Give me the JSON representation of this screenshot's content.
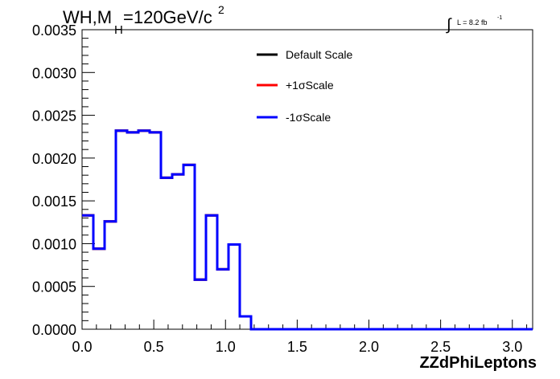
{
  "chart_data": {
    "type": "line",
    "title_main": "WH,M",
    "title_sub": "H",
    "title_rest": "=120GeV/c",
    "title_sup": "2",
    "lumi_int": "∫",
    "lumi_text": "L = 8.2 fb",
    "lumi_sup": "-1",
    "xlabel": "ZZdPhiLeptons",
    "xlim": [
      0,
      3.1416
    ],
    "ylim": [
      0,
      0.0035
    ],
    "xticks": [
      "0.0",
      "0.5",
      "1.0",
      "1.5",
      "2.0",
      "2.5",
      "3.0"
    ],
    "xtick_values": [
      0,
      0.5,
      1.0,
      1.5,
      2.0,
      2.5,
      3.0
    ],
    "yticks": [
      "0.0000",
      "0.0005",
      "0.0010",
      "0.0015",
      "0.0020",
      "0.0025",
      "0.0030",
      "0.0035"
    ],
    "ytick_values": [
      0,
      0.0005,
      0.001,
      0.0015,
      0.002,
      0.0025,
      0.003,
      0.0035
    ],
    "bin_edges": [
      0.0,
      0.0785,
      0.1571,
      0.2356,
      0.3142,
      0.3927,
      0.4712,
      0.5498,
      0.6283,
      0.7069,
      0.7854,
      0.8639,
      0.9425,
      1.021,
      1.0996,
      1.1781,
      3.1416
    ],
    "series": [
      {
        "name": "Default Scale",
        "color": "#000000",
        "values": [
          0.00133,
          0.00094,
          0.00126,
          0.00232,
          0.0023,
          0.00232,
          0.0023,
          0.00177,
          0.00181,
          0.00192,
          0.00058,
          0.00133,
          0.0007,
          0.00099,
          0.00015,
          0.0,
          0.0
        ]
      },
      {
        "name": "+1σScale",
        "color": "#ff0000",
        "values": [
          0.00133,
          0.00094,
          0.00126,
          0.00232,
          0.0023,
          0.00232,
          0.0023,
          0.00177,
          0.00181,
          0.00192,
          0.00058,
          0.00133,
          0.0007,
          0.00099,
          0.00015,
          0.0,
          0.0
        ]
      },
      {
        "name": "-1σScale",
        "color": "#0000ff",
        "values": [
          0.00133,
          0.00094,
          0.00126,
          0.00232,
          0.0023,
          0.00232,
          0.0023,
          0.00177,
          0.00181,
          0.00192,
          0.00058,
          0.00133,
          0.0007,
          0.00099,
          0.00015,
          0.0,
          0.0
        ]
      }
    ],
    "legend": [
      "Default Scale",
      "+1σScale",
      "-1σScale"
    ],
    "legend_position": "top-center"
  }
}
